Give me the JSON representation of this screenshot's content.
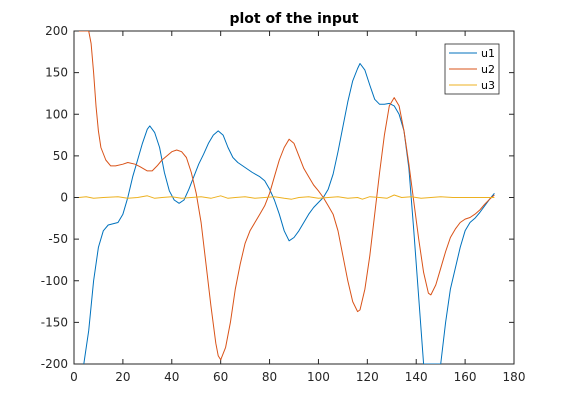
{
  "chart_data": {
    "type": "line",
    "title": "plot of the input",
    "xlabel": "",
    "ylabel": "",
    "xlim": [
      0,
      180
    ],
    "ylim": [
      -200,
      200
    ],
    "x_ticks": [
      "0",
      "20",
      "40",
      "60",
      "80",
      "100",
      "120",
      "140",
      "160",
      "180"
    ],
    "y_ticks": [
      "200",
      "150",
      "100",
      "50",
      "0",
      "-50",
      "-100",
      "-150",
      "-200"
    ],
    "grid": false,
    "legend_position": "top-right",
    "series": [
      {
        "name": "u1",
        "color": "#0072BD",
        "points": [
          [
            4,
            -200
          ],
          [
            6,
            -160
          ],
          [
            8,
            -100
          ],
          [
            10,
            -60
          ],
          [
            12,
            -40
          ],
          [
            14,
            -33
          ],
          [
            18,
            -30
          ],
          [
            20,
            -20
          ],
          [
            22,
            0
          ],
          [
            24,
            25
          ],
          [
            26,
            45
          ],
          [
            28,
            65
          ],
          [
            30,
            82
          ],
          [
            31,
            86
          ],
          [
            33,
            78
          ],
          [
            35,
            60
          ],
          [
            37,
            30
          ],
          [
            39,
            8
          ],
          [
            41,
            -3
          ],
          [
            43,
            -7
          ],
          [
            45,
            -3
          ],
          [
            47,
            10
          ],
          [
            49,
            25
          ],
          [
            51,
            40
          ],
          [
            53,
            52
          ],
          [
            55,
            65
          ],
          [
            57,
            75
          ],
          [
            59,
            80
          ],
          [
            61,
            75
          ],
          [
            63,
            60
          ],
          [
            65,
            48
          ],
          [
            67,
            42
          ],
          [
            70,
            36
          ],
          [
            73,
            30
          ],
          [
            76,
            25
          ],
          [
            78,
            20
          ],
          [
            80,
            10
          ],
          [
            82,
            -3
          ],
          [
            84,
            -20
          ],
          [
            86,
            -40
          ],
          [
            88,
            -52
          ],
          [
            90,
            -48
          ],
          [
            92,
            -40
          ],
          [
            94,
            -30
          ],
          [
            96,
            -20
          ],
          [
            98,
            -12
          ],
          [
            100,
            -6
          ],
          [
            102,
            0
          ],
          [
            104,
            10
          ],
          [
            106,
            28
          ],
          [
            108,
            55
          ],
          [
            110,
            85
          ],
          [
            112,
            115
          ],
          [
            114,
            140
          ],
          [
            116,
            155
          ],
          [
            117,
            161
          ],
          [
            119,
            153
          ],
          [
            121,
            135
          ],
          [
            123,
            118
          ],
          [
            125,
            112
          ],
          [
            127,
            112
          ],
          [
            129,
            113
          ],
          [
            131,
            110
          ],
          [
            133,
            100
          ],
          [
            135,
            80
          ],
          [
            137,
            35
          ],
          [
            139,
            -40
          ],
          [
            141,
            -120
          ],
          [
            143,
            -200
          ],
          [
            150,
            -200
          ],
          [
            152,
            -150
          ],
          [
            154,
            -110
          ],
          [
            156,
            -85
          ],
          [
            158,
            -60
          ],
          [
            160,
            -40
          ],
          [
            162,
            -30
          ],
          [
            164,
            -25
          ],
          [
            166,
            -18
          ],
          [
            168,
            -10
          ],
          [
            170,
            -2
          ],
          [
            172,
            5
          ]
        ]
      },
      {
        "name": "u2",
        "color": "#D95319",
        "points": [
          [
            2,
            200
          ],
          [
            6,
            200
          ],
          [
            7,
            185
          ],
          [
            8,
            150
          ],
          [
            9,
            110
          ],
          [
            10,
            80
          ],
          [
            11,
            60
          ],
          [
            13,
            45
          ],
          [
            15,
            38
          ],
          [
            17,
            38
          ],
          [
            20,
            40
          ],
          [
            22,
            42
          ],
          [
            25,
            40
          ],
          [
            27,
            37
          ],
          [
            30,
            32
          ],
          [
            32,
            32
          ],
          [
            34,
            38
          ],
          [
            36,
            45
          ],
          [
            38,
            50
          ],
          [
            40,
            55
          ],
          [
            42,
            57
          ],
          [
            44,
            55
          ],
          [
            46,
            48
          ],
          [
            48,
            30
          ],
          [
            50,
            5
          ],
          [
            52,
            -30
          ],
          [
            54,
            -80
          ],
          [
            56,
            -130
          ],
          [
            58,
            -175
          ],
          [
            59,
            -190
          ],
          [
            60,
            -195
          ],
          [
            62,
            -180
          ],
          [
            64,
            -150
          ],
          [
            66,
            -110
          ],
          [
            68,
            -80
          ],
          [
            70,
            -55
          ],
          [
            72,
            -40
          ],
          [
            74,
            -30
          ],
          [
            76,
            -20
          ],
          [
            78,
            -10
          ],
          [
            80,
            5
          ],
          [
            82,
            25
          ],
          [
            84,
            45
          ],
          [
            86,
            60
          ],
          [
            88,
            70
          ],
          [
            90,
            65
          ],
          [
            92,
            50
          ],
          [
            94,
            35
          ],
          [
            96,
            25
          ],
          [
            98,
            15
          ],
          [
            100,
            8
          ],
          [
            102,
            0
          ],
          [
            104,
            -10
          ],
          [
            106,
            -20
          ],
          [
            108,
            -40
          ],
          [
            110,
            -70
          ],
          [
            112,
            -100
          ],
          [
            114,
            -125
          ],
          [
            116,
            -137
          ],
          [
            117,
            -135
          ],
          [
            119,
            -110
          ],
          [
            121,
            -70
          ],
          [
            123,
            -20
          ],
          [
            125,
            30
          ],
          [
            127,
            75
          ],
          [
            129,
            110
          ],
          [
            131,
            120
          ],
          [
            133,
            110
          ],
          [
            135,
            80
          ],
          [
            137,
            40
          ],
          [
            139,
            -5
          ],
          [
            141,
            -50
          ],
          [
            143,
            -90
          ],
          [
            145,
            -115
          ],
          [
            146,
            -117
          ],
          [
            148,
            -105
          ],
          [
            150,
            -85
          ],
          [
            152,
            -65
          ],
          [
            154,
            -48
          ],
          [
            156,
            -38
          ],
          [
            158,
            -30
          ],
          [
            160,
            -26
          ],
          [
            162,
            -24
          ],
          [
            164,
            -20
          ],
          [
            166,
            -15
          ],
          [
            168,
            -8
          ],
          [
            170,
            -2
          ],
          [
            172,
            3
          ]
        ]
      },
      {
        "name": "u3",
        "color": "#EDB120",
        "points": [
          [
            2,
            0
          ],
          [
            5,
            1
          ],
          [
            8,
            -1
          ],
          [
            12,
            0
          ],
          [
            18,
            1
          ],
          [
            22,
            -1
          ],
          [
            26,
            0
          ],
          [
            30,
            2
          ],
          [
            33,
            -1
          ],
          [
            36,
            0
          ],
          [
            40,
            1
          ],
          [
            44,
            -1
          ],
          [
            48,
            0
          ],
          [
            52,
            1
          ],
          [
            56,
            -1
          ],
          [
            60,
            2
          ],
          [
            63,
            -1
          ],
          [
            66,
            0
          ],
          [
            70,
            1
          ],
          [
            74,
            -1
          ],
          [
            78,
            0
          ],
          [
            82,
            1
          ],
          [
            86,
            -1
          ],
          [
            89,
            -2
          ],
          [
            92,
            0
          ],
          [
            96,
            1
          ],
          [
            100,
            -1
          ],
          [
            104,
            0
          ],
          [
            108,
            1
          ],
          [
            112,
            -1
          ],
          [
            116,
            0
          ],
          [
            118,
            -2
          ],
          [
            121,
            1
          ],
          [
            125,
            0
          ],
          [
            128,
            -1
          ],
          [
            131,
            3
          ],
          [
            134,
            0
          ],
          [
            138,
            1
          ],
          [
            142,
            -1
          ],
          [
            146,
            0
          ],
          [
            150,
            1
          ],
          [
            155,
            0
          ],
          [
            160,
            0
          ],
          [
            165,
            0
          ],
          [
            172,
            0
          ]
        ]
      }
    ]
  }
}
